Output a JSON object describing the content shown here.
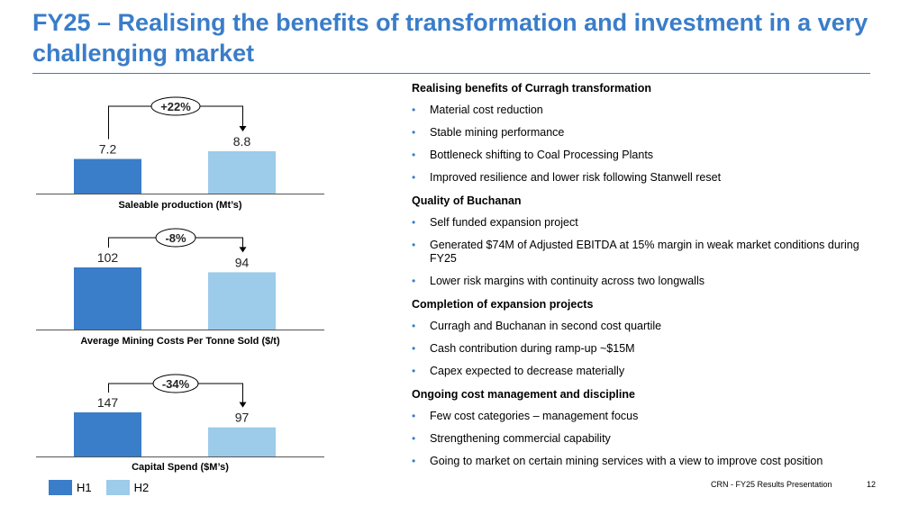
{
  "slide": {
    "title": "FY25 – Realising the benefits of transformation and investment in a very challenging market",
    "footer_source": "CRN - FY25 Results Presentation",
    "page_number": "12"
  },
  "colors": {
    "accent": "#3a7dc9",
    "h1": "#3a7dc9",
    "h2": "#9dcbea"
  },
  "legend": [
    {
      "label": "H1",
      "color": "#3a7dc9"
    },
    {
      "label": "H2",
      "color": "#9dcbea"
    }
  ],
  "chart_data": [
    {
      "type": "bar",
      "title": "Saleable production (Mt’s)",
      "categories": [
        "H1",
        "H2"
      ],
      "values": [
        7.2,
        8.8
      ],
      "value_labels": [
        "7.2",
        "8.8"
      ],
      "change_label": "+22%"
    },
    {
      "type": "bar",
      "title": "Average Mining Costs Per Tonne Sold ($/t)",
      "categories": [
        "H1",
        "H2"
      ],
      "values": [
        102,
        94
      ],
      "value_labels": [
        "102",
        "94"
      ],
      "change_label": "-8%"
    },
    {
      "type": "bar",
      "title": "Capital Spend ($M’s)",
      "categories": [
        "H1",
        "H2"
      ],
      "values": [
        147,
        97
      ],
      "value_labels": [
        "147",
        "97"
      ],
      "change_label": "-34%"
    }
  ],
  "sections": [
    {
      "heading": "Realising benefits of Curragh transformation",
      "bullets": [
        "Material cost reduction",
        "Stable mining performance",
        "Bottleneck shifting to Coal Processing Plants",
        "Improved resilience and lower risk following Stanwell reset"
      ]
    },
    {
      "heading": "Quality of Buchanan",
      "bullets": [
        "Self funded expansion project",
        "Generated $74M of Adjusted EBITDA at 15% margin in weak market conditions during FY25",
        "Lower risk margins with continuity across two longwalls"
      ]
    },
    {
      "heading": "Completion of expansion projects",
      "bullets": [
        "Curragh and Buchanan in second cost quartile",
        "Cash contribution during ramp-up ~$15M",
        "Capex expected to decrease materially"
      ]
    },
    {
      "heading": "Ongoing cost management and discipline",
      "bullets": [
        "Few cost categories – management focus",
        "Strengthening commercial capability",
        "Going to market on certain mining services with a view to improve cost position"
      ]
    }
  ]
}
